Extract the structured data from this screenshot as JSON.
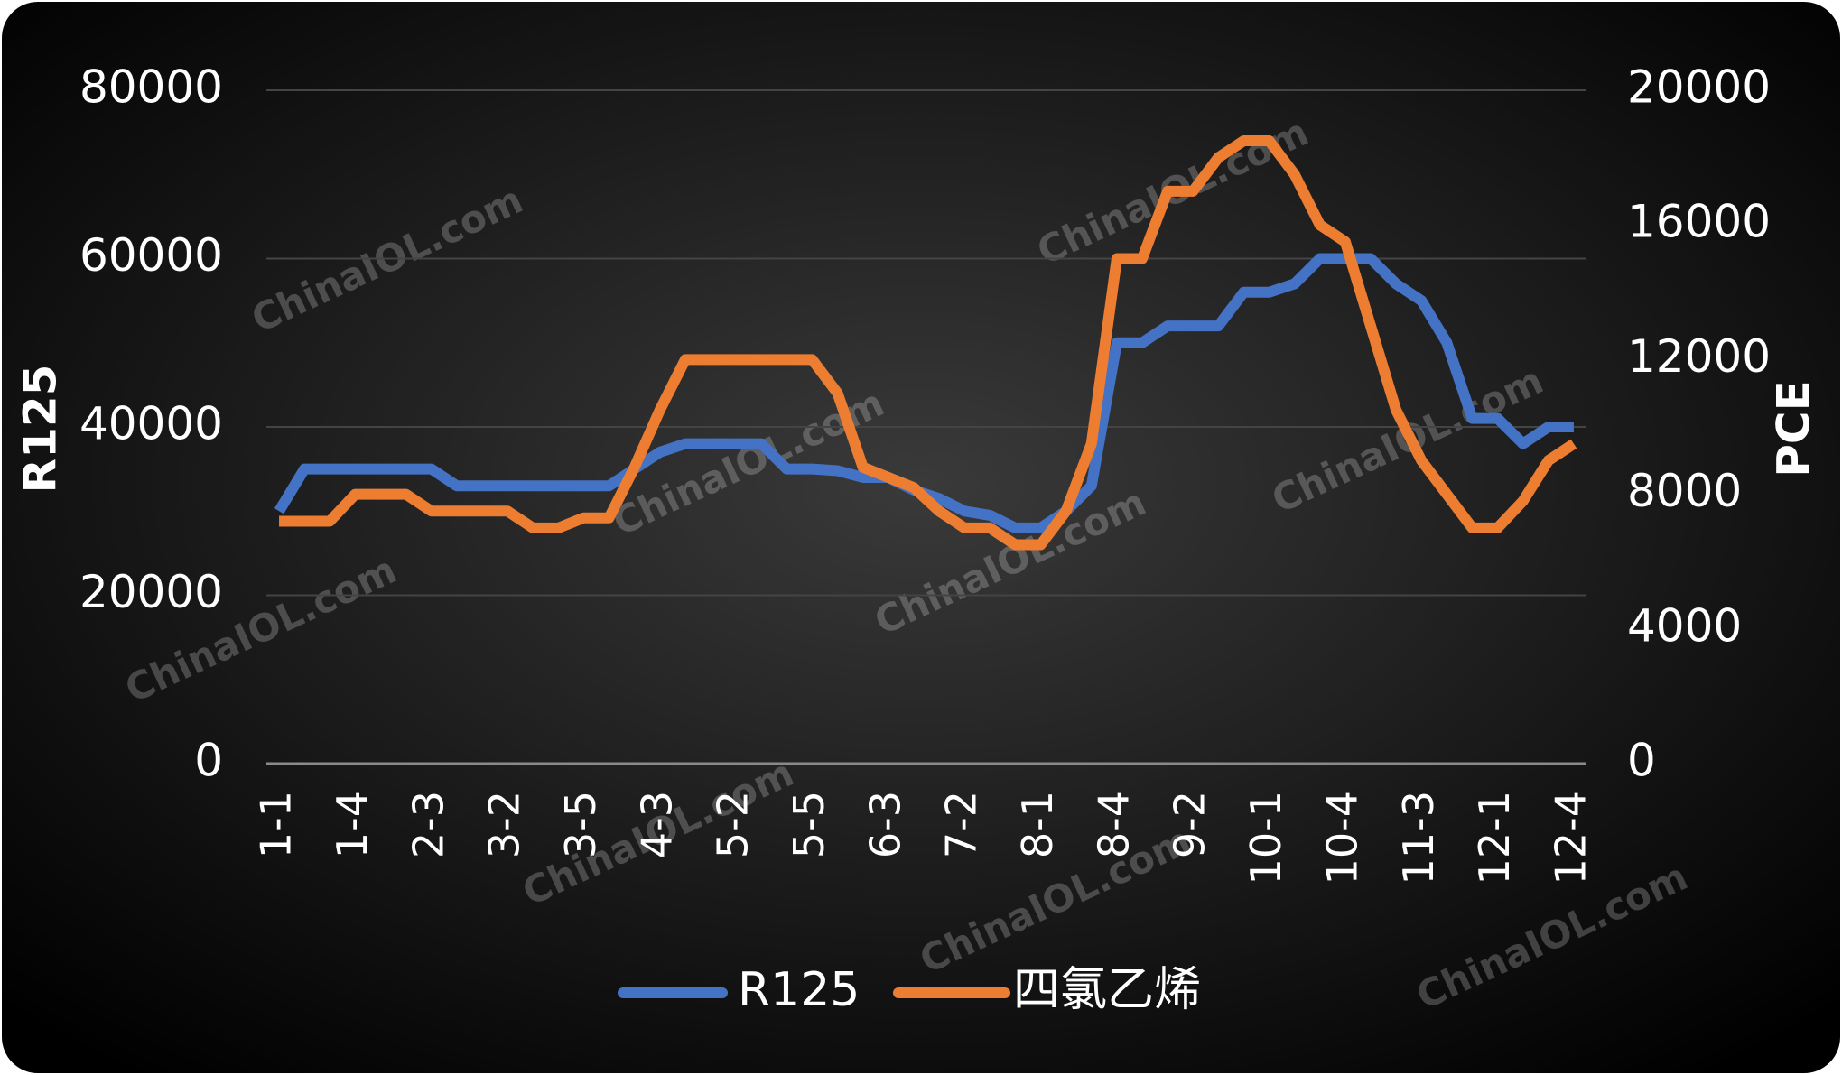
{
  "chart_data": {
    "type": "line",
    "categories": [
      "1-1",
      null,
      null,
      "1-4",
      null,
      null,
      "2-3",
      null,
      null,
      "3-2",
      null,
      null,
      "3-5",
      null,
      null,
      "4-3",
      null,
      null,
      "5-2",
      null,
      null,
      "5-5",
      null,
      null,
      "6-3",
      null,
      null,
      "7-2",
      null,
      null,
      "8-1",
      null,
      null,
      "8-4",
      null,
      null,
      "9-2",
      null,
      null,
      "10-1",
      null,
      null,
      "10-4",
      null,
      null,
      "11-3",
      null,
      null,
      "12-1",
      null,
      null,
      "12-4"
    ],
    "series": [
      {
        "name": "R125",
        "color": "#4472c4",
        "values": [
          30000,
          35000,
          35000,
          35000,
          35000,
          35000,
          35000,
          33000,
          33000,
          33000,
          33000,
          33000,
          33000,
          33000,
          35000,
          37000,
          38000,
          38000,
          38000,
          38000,
          35000,
          35000,
          34800,
          34000,
          34000,
          32500,
          31500,
          30000,
          29500,
          28000,
          28000,
          30000,
          33000,
          50000,
          50000,
          52000,
          52000,
          52000,
          56000,
          56000,
          57000,
          60000,
          60000,
          60000,
          57000,
          55000,
          50000,
          41000,
          41000,
          38000,
          40000,
          40000
        ]
      },
      {
        "name": "四氯乙烯",
        "color": "#ed7d31",
        "axis": "y2",
        "values": [
          7200,
          7200,
          7200,
          8000,
          8000,
          8000,
          7500,
          7500,
          7500,
          7500,
          7000,
          7000,
          7300,
          7300,
          8800,
          10500,
          12000,
          12000,
          12000,
          12000,
          12000,
          12000,
          11000,
          8800,
          8500,
          8200,
          7500,
          7000,
          7000,
          6500,
          6500,
          7500,
          9500,
          15000,
          15000,
          17000,
          17000,
          18000,
          18500,
          18500,
          17500,
          16000,
          15500,
          13000,
          10500,
          9000,
          8000,
          7000,
          7000,
          7800,
          9000,
          9500
        ]
      }
    ],
    "y_label": "R125",
    "y2_label": "PCE",
    "ylim": [
      0,
      80000
    ],
    "yticks": [
      0,
      20000,
      40000,
      60000,
      80000
    ],
    "y2lim": [
      0,
      20000
    ],
    "y2ticks": [
      0,
      4000,
      8000,
      12000,
      16000,
      20000
    ],
    "grid": true,
    "legend": "bottom",
    "watermark": "ChinaIOL.com"
  }
}
